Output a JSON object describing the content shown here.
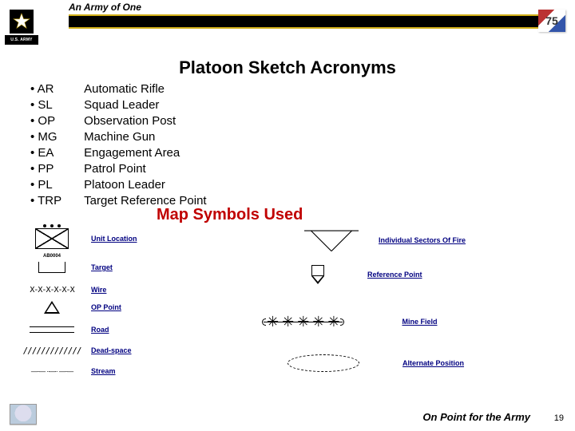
{
  "header": {
    "tagline": "An Army of One",
    "us_army": "U.S. ARMY",
    "badge": "75"
  },
  "title": "Platoon Sketch Acronyms",
  "acronyms": [
    {
      "abbr": "AR",
      "full": "Automatic Rifle"
    },
    {
      "abbr": "SL",
      "full": "Squad Leader"
    },
    {
      "abbr": "OP",
      "full": "Observation Post"
    },
    {
      "abbr": "MG",
      "full": "Machine Gun"
    },
    {
      "abbr": "EA",
      "full": "Engagement Area"
    },
    {
      "abbr": "PP",
      "full": "Patrol Point"
    },
    {
      "abbr": "PL",
      "full": "Platoon Leader"
    },
    {
      "abbr": "TRP",
      "full": "Target Reference Point"
    }
  ],
  "subtitle": "Map Symbols Used",
  "symbols": {
    "left": [
      {
        "label": "Unit Location"
      },
      {
        "label": "Target",
        "text": "AB0004"
      },
      {
        "label": "Wire",
        "glyph": "X-X-X-X-X-X"
      },
      {
        "label": "OP Point"
      },
      {
        "label": "Road"
      },
      {
        "label": "Dead-space",
        "glyph": "/////////////"
      },
      {
        "label": "Stream"
      }
    ],
    "right": [
      {
        "label": "Individual Sectors Of Fire"
      },
      {
        "label": "Reference Point"
      },
      {
        "label": "Mine Field"
      },
      {
        "label": "Alternate Position"
      }
    ]
  },
  "footer": {
    "text": "On Point for the Army",
    "page": "19"
  },
  "colors": {
    "accent_red": "#c00000",
    "link_blue": "#000080",
    "gold": "#d2b019"
  }
}
